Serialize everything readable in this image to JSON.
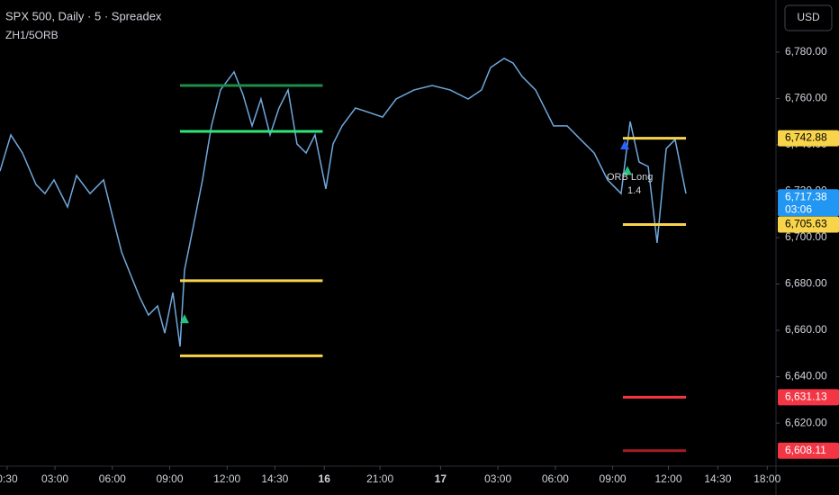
{
  "chart_data": {
    "type": "line",
    "title": "SPX 500, Daily · 5 · Spreadex",
    "subtitle": "ZH1/5ORB",
    "currency": "USD",
    "annotations": [
      "ORB Long",
      "1.4"
    ],
    "series": [
      {
        "name": "SPX 500",
        "color": "#6fa8dc",
        "x": [
          -4.5,
          2.3,
          9.6,
          18.1,
          23.7,
          29.4,
          37.9,
          43.5,
          52,
          60.5,
          66.1,
          71.8,
          77.4,
          83.1,
          88.7,
          94.4,
          98.9,
          104,
          108.5,
          111.3,
          117,
          122.6,
          128.2,
          133.9,
          142.4,
          148,
          153.7,
          159.3,
          165,
          170.6,
          176.3,
          181.9,
          187.6,
          193.2,
          200,
          204.5,
          210.2,
          218.6,
          227.1,
          235.6,
          244.1,
          255.4,
          266.7,
          278,
          289.3,
          297.7,
          303.4,
          311.9,
          317.5,
          323.2,
          331.6,
          337.3,
          342.9,
          351.4,
          359.9,
          368.4,
          376.8,
          385.3,
          391,
          396.6,
          402.3,
          407.9,
          413.6,
          419.2,
          426
        ],
        "values": [
          6728.7,
          6744.3,
          6736.5,
          6722.9,
          6719.0,
          6724.9,
          6713.2,
          6726.8,
          6719.0,
          6724.9,
          6709.3,
          6693.8,
          6684.1,
          6674.4,
          6666.6,
          6670.5,
          6658.8,
          6676.3,
          6653.0,
          6686.0,
          6705.4,
          6724.9,
          6748.2,
          6763.7,
          6771.5,
          6761.7,
          6748.2,
          6759.8,
          6744.3,
          6755.9,
          6763.7,
          6740.4,
          6736.5,
          6744.3,
          6721.0,
          6740.4,
          6748.2,
          6755.9,
          6754.0,
          6752.0,
          6759.8,
          6763.7,
          6765.6,
          6763.7,
          6759.8,
          6763.7,
          6773.4,
          6777.3,
          6775.3,
          6769.5,
          6763.7,
          6755.9,
          6748.2,
          6748.2,
          6742.3,
          6736.5,
          6724.9,
          6719.0,
          6750.1,
          6732.6,
          6730.7,
          6697.7,
          6738.4,
          6742.3,
          6719.0
        ]
      }
    ],
    "levels": [
      {
        "value": 6765.6,
        "color": "#1e8e4a",
        "start": 108.5,
        "end": 198
      },
      {
        "value": 6745.8,
        "color": "#2ee67a",
        "start": 108.5,
        "end": 198
      },
      {
        "value": 6681.4,
        "color": "#f7d44a",
        "start": 108.5,
        "end": 198
      },
      {
        "value": 6649.0,
        "color": "#f7d44a",
        "start": 108.5,
        "end": 198
      },
      {
        "value": 6742.88,
        "color": "#f7d44a",
        "start": 386.4,
        "end": 426
      },
      {
        "value": 6705.63,
        "color": "#f7d44a",
        "start": 386.4,
        "end": 426
      },
      {
        "value": 6631.13,
        "color": "#f23645",
        "start": 386.4,
        "end": 426
      },
      {
        "value": 6608.11,
        "color": "#a51c24",
        "start": 386.4,
        "end": 426
      }
    ],
    "markers": [
      {
        "x": 111.3,
        "y": 6665,
        "color": "#26c281"
      },
      {
        "x": 389.3,
        "y": 6729,
        "color": "#26c281"
      },
      {
        "x": 387.6,
        "y": 6740,
        "color": "#2962ff"
      }
    ],
    "price_labels": [
      {
        "value": 6742.88,
        "label": "6,742.88",
        "color": "#f7d44a",
        "text_color": "#000000"
      },
      {
        "value": 6717.38,
        "label": "6,717.38",
        "color": "#2196f3",
        "text_color": "#ffffff",
        "timer": "03:06"
      },
      {
        "value": 6705.63,
        "label": "6,705.63",
        "color": "#f7d44a",
        "text_color": "#000000"
      },
      {
        "value": 6631.13,
        "label": "6,631.13",
        "color": "#f23645",
        "text_color": "#ffffff"
      },
      {
        "value": 6608.11,
        "label": "6,608.11",
        "color": "#f23645",
        "text_color": "#ffffff"
      }
    ],
    "xlim": [
      -4.5,
      482.5
    ],
    "xticks": [
      {
        "value": 0,
        "label": "0:30"
      },
      {
        "value": 30,
        "label": "03:00"
      },
      {
        "value": 66,
        "label": "06:00"
      },
      {
        "value": 102,
        "label": "09:00"
      },
      {
        "value": 138,
        "label": "12:00"
      },
      {
        "value": 168,
        "label": "14:30"
      },
      199,
      {
        "value": 234,
        "label": "21:00"
      },
      272,
      {
        "value": 308,
        "label": "03:00"
      },
      {
        "value": 344,
        "label": "06:00"
      },
      {
        "value": 380,
        "label": "09:00"
      },
      {
        "value": 415,
        "label": "12:00"
      },
      {
        "value": 446,
        "label": "14:30"
      },
      {
        "value": 477,
        "label": "18:00"
      }
    ],
    "xtick_day_labels": [
      {
        "value": 199,
        "label": "16"
      },
      {
        "value": 272,
        "label": "17"
      }
    ],
    "ylim": [
      6601.4,
      6802.5
    ],
    "yticks": [
      {
        "value": 6620,
        "label": "6,620.00"
      },
      {
        "value": 6640,
        "label": "6,640.00"
      },
      {
        "value": 6660,
        "label": "6,660.00"
      },
      {
        "value": 6680,
        "label": "6,680.00"
      },
      {
        "value": 6700,
        "label": "6,700.00"
      },
      {
        "value": 6720,
        "label": "6,720.00"
      },
      {
        "value": 6740,
        "label": "6,740.00"
      },
      {
        "value": 6760,
        "label": "6,760.00"
      },
      {
        "value": 6780,
        "label": "6,780.00"
      }
    ],
    "grid": false
  }
}
